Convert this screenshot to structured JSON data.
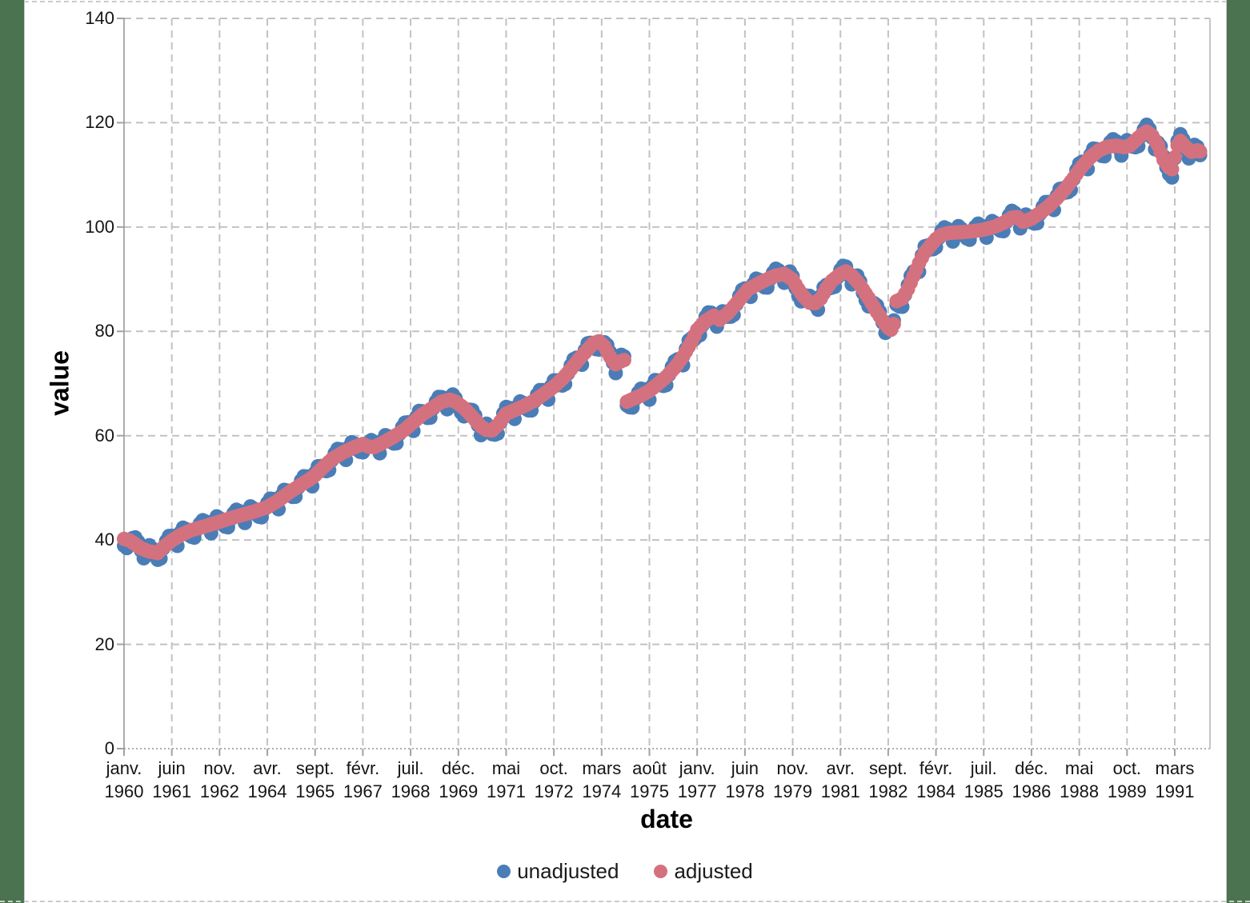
{
  "page": {
    "background_color": "#4B7350",
    "sheet_color": "#FFFFFF"
  },
  "chart_data": {
    "type": "scatter",
    "title": "",
    "xlabel": "date",
    "ylabel": "value",
    "ylim": [
      0,
      140
    ],
    "y_ticks": [
      0,
      20,
      40,
      60,
      80,
      100,
      120,
      140
    ],
    "grid": "dashed",
    "legend_position": "bottom-center",
    "x_axis_start": "janv. 1960",
    "x_axis_end": "déc. 1991",
    "months_total": 384,
    "x_ticks": [
      {
        "m": 0,
        "month": "janv.",
        "year": "1960"
      },
      {
        "m": 17,
        "month": "juin",
        "year": "1961"
      },
      {
        "m": 34,
        "month": "nov.",
        "year": "1962"
      },
      {
        "m": 51,
        "month": "avr.",
        "year": "1964"
      },
      {
        "m": 68,
        "month": "sept.",
        "year": "1965"
      },
      {
        "m": 85,
        "month": "févr.",
        "year": "1967"
      },
      {
        "m": 102,
        "month": "juil.",
        "year": "1968"
      },
      {
        "m": 119,
        "month": "déc.",
        "year": "1969"
      },
      {
        "m": 136,
        "month": "mai",
        "year": "1971"
      },
      {
        "m": 153,
        "month": "oct.",
        "year": "1972"
      },
      {
        "m": 170,
        "month": "mars",
        "year": "1974"
      },
      {
        "m": 187,
        "month": "août",
        "year": "1975"
      },
      {
        "m": 204,
        "month": "janv.",
        "year": "1977"
      },
      {
        "m": 221,
        "month": "juin",
        "year": "1978"
      },
      {
        "m": 238,
        "month": "nov.",
        "year": "1979"
      },
      {
        "m": 255,
        "month": "avr.",
        "year": "1981"
      },
      {
        "m": 272,
        "month": "sept.",
        "year": "1982"
      },
      {
        "m": 289,
        "month": "févr.",
        "year": "1984"
      },
      {
        "m": 306,
        "month": "juil.",
        "year": "1985"
      },
      {
        "m": 323,
        "month": "déc.",
        "year": "1986"
      },
      {
        "m": 340,
        "month": "mai",
        "year": "1988"
      },
      {
        "m": 357,
        "month": "oct.",
        "year": "1989"
      },
      {
        "m": 374,
        "month": "mars",
        "year": "1991"
      }
    ],
    "series": [
      {
        "name": "unadjusted",
        "color": "#4A7DB6",
        "marker": "circle",
        "definition": "adjusted trend plus monthly seasonal offset",
        "seasonal_offsets_jan_to_dec": [
          -1.3,
          -1.6,
          -0.2,
          0.8,
          1.3,
          0.9,
          -0.4,
          -1.7,
          0.5,
          1.2,
          0.7,
          -0.7
        ]
      },
      {
        "name": "adjusted",
        "color": "#D4717F",
        "marker": "circle",
        "definition": "monthly values linearly interpolated between trend keypoints [month_index_from_jan1960, value]",
        "trend_keypoints": [
          [
            0,
            40.2
          ],
          [
            2,
            39.9
          ],
          [
            4,
            39.2
          ],
          [
            6,
            38.4
          ],
          [
            9,
            37.8
          ],
          [
            12,
            37.5
          ],
          [
            14,
            38.6
          ],
          [
            17,
            39.9
          ],
          [
            20,
            40.9
          ],
          [
            24,
            41.9
          ],
          [
            28,
            42.5
          ],
          [
            31,
            43.0
          ],
          [
            34,
            43.5
          ],
          [
            38,
            44.2
          ],
          [
            42,
            44.8
          ],
          [
            46,
            45.4
          ],
          [
            51,
            46.3
          ],
          [
            55,
            47.6
          ],
          [
            59,
            49.2
          ],
          [
            63,
            50.6
          ],
          [
            66,
            51.6
          ],
          [
            68,
            52.4
          ],
          [
            71,
            54.0
          ],
          [
            74,
            55.5
          ],
          [
            78,
            56.8
          ],
          [
            82,
            57.8
          ],
          [
            85,
            58.4
          ],
          [
            87,
            57.9
          ],
          [
            89,
            57.8
          ],
          [
            92,
            58.6
          ],
          [
            96,
            59.8
          ],
          [
            100,
            61.2
          ],
          [
            103,
            62.6
          ],
          [
            106,
            64.0
          ],
          [
            110,
            65.4
          ],
          [
            113,
            66.5
          ],
          [
            116,
            66.9
          ],
          [
            118,
            66.5
          ],
          [
            121,
            65.3
          ],
          [
            124,
            63.6
          ],
          [
            127,
            61.8
          ],
          [
            129,
            61.1
          ],
          [
            131,
            61.0
          ],
          [
            133,
            62.0
          ],
          [
            136,
            64.2
          ],
          [
            139,
            64.9
          ],
          [
            142,
            65.6
          ],
          [
            146,
            66.7
          ],
          [
            150,
            68.2
          ],
          [
            153,
            69.4
          ],
          [
            156,
            70.9
          ],
          [
            159,
            72.7
          ],
          [
            162,
            74.7
          ],
          [
            165,
            76.5
          ],
          [
            167,
            77.7
          ],
          [
            169,
            78.1
          ],
          [
            171,
            77.1
          ],
          [
            173,
            75.1
          ],
          [
            175,
            73.7
          ],
          [
            177,
            74.3
          ],
          [
            178,
            74.5
          ],
          [
            179,
            66.5
          ],
          [
            181,
            67.0
          ],
          [
            184,
            67.7
          ],
          [
            187,
            68.6
          ],
          [
            190,
            69.9
          ],
          [
            193,
            71.3
          ],
          [
            196,
            73.0
          ],
          [
            199,
            75.2
          ],
          [
            202,
            78.0
          ],
          [
            204,
            80.3
          ],
          [
            207,
            82.0
          ],
          [
            210,
            83.0
          ],
          [
            212,
            82.2
          ],
          [
            215,
            83.5
          ],
          [
            219,
            86.0
          ],
          [
            222,
            88.0
          ],
          [
            226,
            89.2
          ],
          [
            229,
            90.0
          ],
          [
            232,
            90.7
          ],
          [
            235,
            91.0
          ],
          [
            238,
            89.9
          ],
          [
            240,
            88.1
          ],
          [
            242,
            86.6
          ],
          [
            244,
            85.5
          ],
          [
            246,
            85.4
          ],
          [
            248,
            86.3
          ],
          [
            250,
            88.2
          ],
          [
            252,
            89.7
          ],
          [
            255,
            91.0
          ],
          [
            257,
            91.5
          ],
          [
            259,
            90.7
          ],
          [
            262,
            88.9
          ],
          [
            265,
            86.4
          ],
          [
            268,
            83.7
          ],
          [
            270,
            82.1
          ],
          [
            272,
            80.7
          ],
          [
            273,
            80.3
          ],
          [
            274,
            81.4
          ],
          [
            275,
            85.8
          ],
          [
            277,
            86.3
          ],
          [
            279,
            88.1
          ],
          [
            281,
            90.6
          ],
          [
            283,
            93.1
          ],
          [
            285,
            95.1
          ],
          [
            287,
            96.4
          ],
          [
            289,
            97.7
          ],
          [
            291,
            98.5
          ],
          [
            294,
            98.9
          ],
          [
            298,
            99.0
          ],
          [
            302,
            99.2
          ],
          [
            306,
            99.5
          ],
          [
            310,
            100.1
          ],
          [
            313,
            100.8
          ],
          [
            316,
            101.8
          ],
          [
            318,
            101.9
          ],
          [
            320,
            101.0
          ],
          [
            323,
            101.6
          ],
          [
            326,
            102.7
          ],
          [
            329,
            103.9
          ],
          [
            332,
            105.5
          ],
          [
            335,
            107.3
          ],
          [
            338,
            109.4
          ],
          [
            341,
            111.6
          ],
          [
            344,
            113.4
          ],
          [
            347,
            114.7
          ],
          [
            350,
            115.4
          ],
          [
            353,
            115.6
          ],
          [
            356,
            115.3
          ],
          [
            358,
            115.6
          ],
          [
            360,
            116.6
          ],
          [
            362,
            117.6
          ],
          [
            364,
            118.3
          ],
          [
            366,
            117.5
          ],
          [
            368,
            115.7
          ],
          [
            370,
            112.9
          ],
          [
            372,
            111.4
          ],
          [
            373,
            111.1
          ],
          [
            375,
            115.7
          ],
          [
            376,
            116.5
          ],
          [
            378,
            115.3
          ],
          [
            380,
            114.4
          ],
          [
            382,
            114.7
          ],
          [
            383,
            114.5
          ]
        ]
      }
    ],
    "style": {
      "grid_color": "#C2C2C2",
      "axis_color": "#ADADAD",
      "tick_color": "#9EA2A8",
      "point_radius_px": 9
    }
  }
}
